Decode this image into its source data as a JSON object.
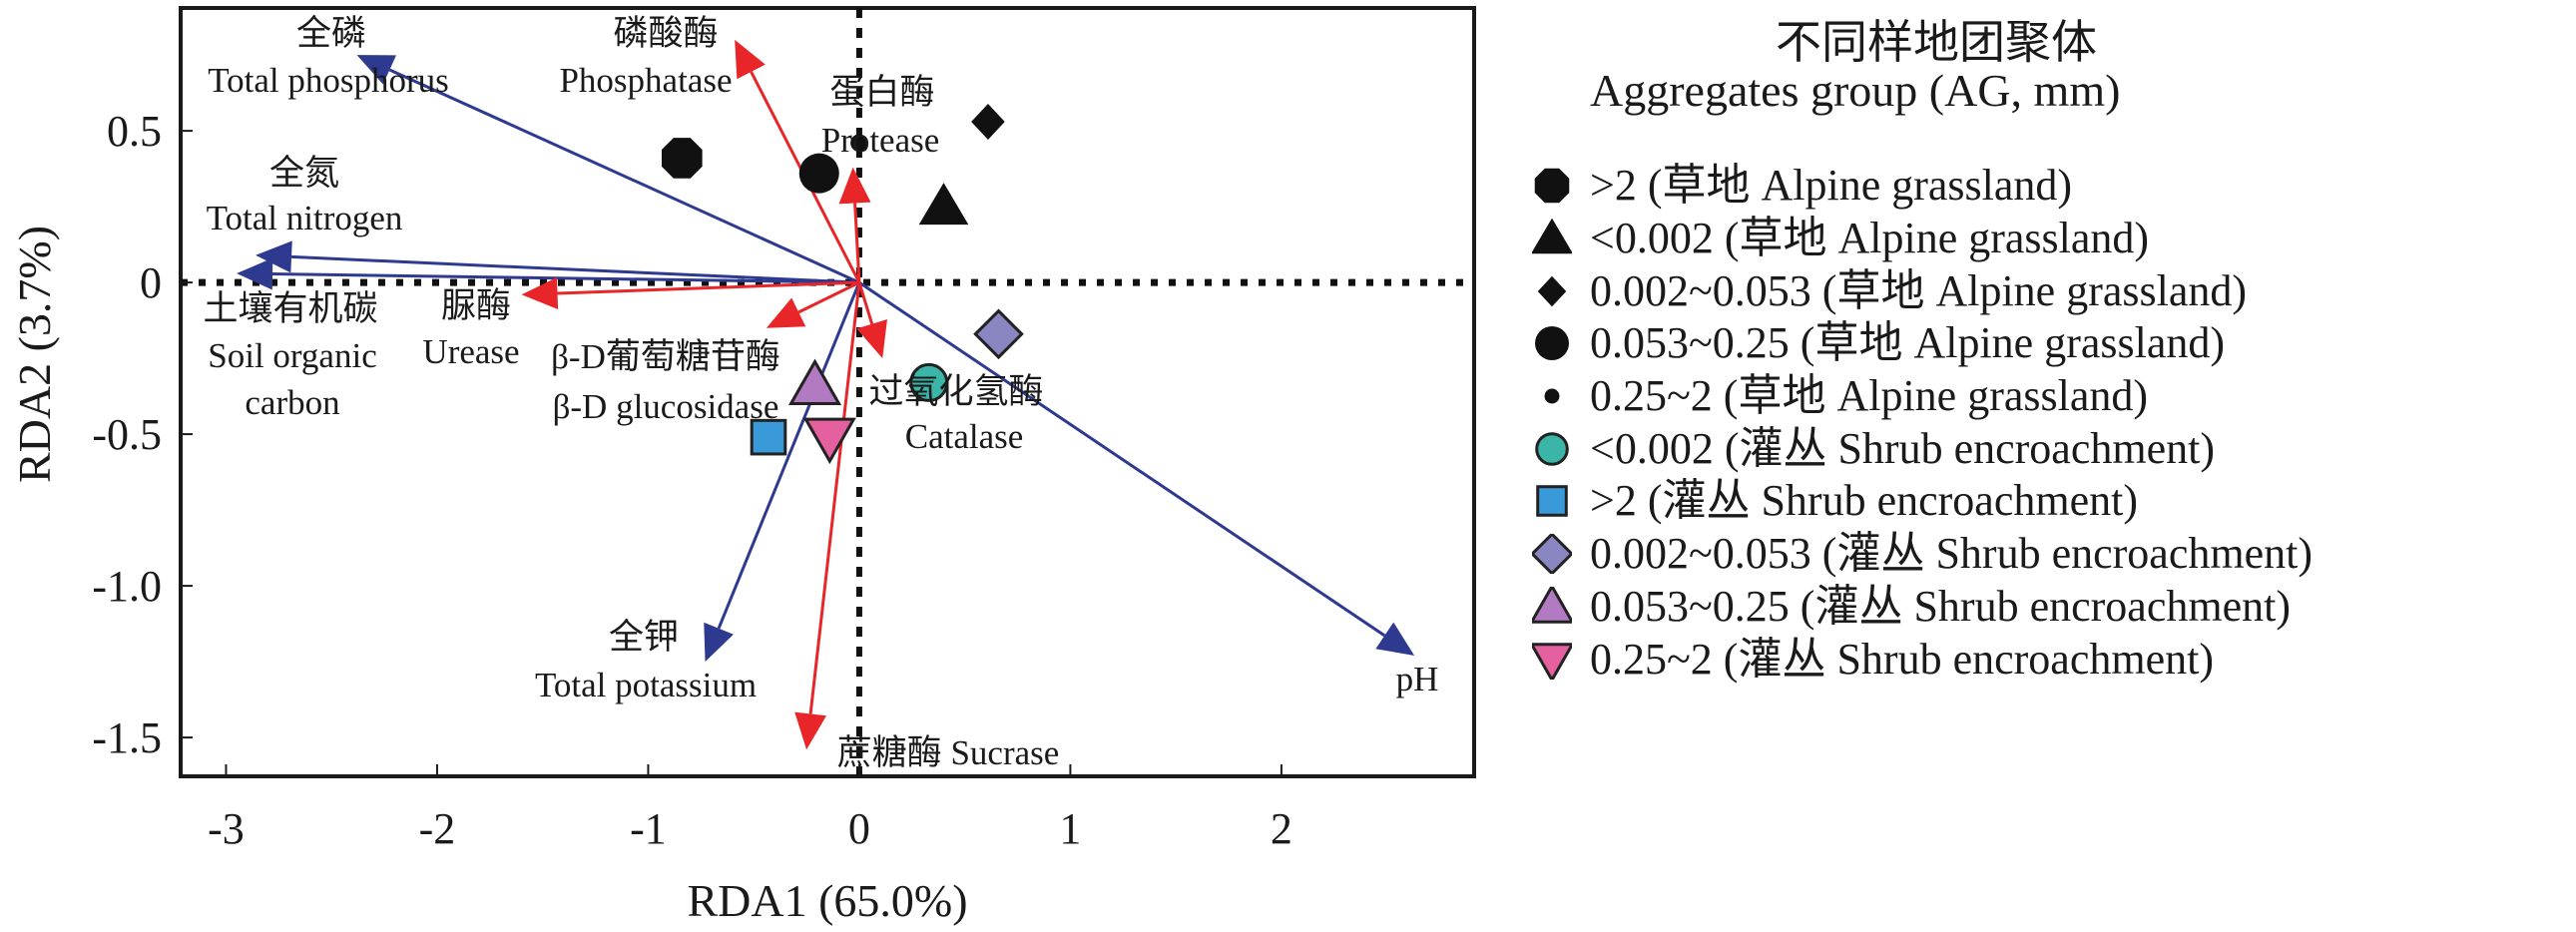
{
  "chart_data": {
    "type": "scatter",
    "subtype": "RDA biplot",
    "xlabel": "RDA1 (65.0%)",
    "ylabel": "RDA2 (3.7%)",
    "xlim": [
      -3.215,
      2.913
    ],
    "ylim": [
      -1.628,
      0.905
    ],
    "x_ticks": [
      -3,
      -2,
      -1,
      0,
      1,
      2
    ],
    "x_tick_labels": [
      "-3",
      "-2",
      "-1",
      "0",
      "1",
      "2"
    ],
    "y_ticks": [
      0.5,
      0,
      -0.5,
      -1.0,
      -1.5
    ],
    "y_tick_labels": [
      "0.5",
      "0",
      "-0.5",
      "-1.0",
      "-1.5"
    ],
    "grid": false,
    "reference_lines": {
      "x0": "dotted",
      "y0": "dotted"
    },
    "arrow_colors": {
      "soil_property": "#2e3a8f",
      "enzyme": "#e8262a"
    },
    "arrows": [
      {
        "group": "soil_property",
        "zh": "全磷",
        "en": "Total phosphorus",
        "x": -2.38,
        "y": 0.75
      },
      {
        "group": "soil_property",
        "zh": "全氮",
        "en": "Total nitrogen",
        "x": -2.86,
        "y": 0.09
      },
      {
        "group": "soil_property",
        "zh": "土壤有机碳",
        "en": "Soil organic carbon",
        "x": -2.95,
        "y": 0.03
      },
      {
        "group": "soil_property",
        "zh": "全钾",
        "en": "Total potassium",
        "x": -0.73,
        "y": -1.25
      },
      {
        "group": "soil_property",
        "zh": "",
        "en": "pH",
        "x": 2.63,
        "y": -1.23
      },
      {
        "group": "enzyme",
        "zh": "磷酸酶",
        "en": "Phosphatase",
        "x": -0.59,
        "y": 0.8
      },
      {
        "group": "enzyme",
        "zh": "蛋白酶",
        "en": "Protease",
        "x": -0.03,
        "y": 0.38
      },
      {
        "group": "enzyme",
        "zh": "脲酶",
        "en": "Urease",
        "x": -1.6,
        "y": -0.04
      },
      {
        "group": "enzyme",
        "zh": "β-D葡萄糖苷酶",
        "en": "β-D glucosidase",
        "x": -0.44,
        "y": -0.15
      },
      {
        "group": "enzyme",
        "zh": "过氧化氢酶",
        "en": "Catalase",
        "x": 0.11,
        "y": -0.25
      },
      {
        "group": "enzyme",
        "zh": "蔗糖酶",
        "en": "Sucrase",
        "x": -0.25,
        "y": -1.54
      }
    ],
    "annotations": {
      "tp_zh": "全磷",
      "tp_en": "Total phosphorus",
      "pa_zh": "磷酸酶",
      "pa_en": "Phosphatase",
      "pr_zh": "蛋白酶",
      "pr_en": "Protease",
      "tn_zh": "全氮",
      "tn_en": "Total nitrogen",
      "soc_zh": "土壤有机碳",
      "soc_en1": "Soil organic",
      "soc_en2": "carbon",
      "ur_zh": "脲酶",
      "ur_en": "Urease",
      "bg_zh": "β-D葡萄糖苷酶",
      "bg_en": "β-D glucosidase",
      "ca_zh": "过氧化氢酶",
      "ca_en": "Catalase",
      "tk_zh": "全钾",
      "tk_en": "Total potassium",
      "su": "蔗糖酶 Sucrase",
      "ph": "pH"
    },
    "legend_title_zh": "不同样地团聚体",
    "legend_title_en": "Aggregates group (AG, mm)",
    "legend_position": "right",
    "series": [
      {
        "name": ">2 (草地 Alpine grassland)",
        "marker": "octagon",
        "color": "#111111",
        "x": -0.84,
        "y": 0.41
      },
      {
        "name": "<0.002 (草地 Alpine grassland)",
        "marker": "triangle-up",
        "color": "#111111",
        "x": 0.4,
        "y": 0.25
      },
      {
        "name": "0.002~0.053 (草地 Alpine grassland)",
        "marker": "diamond-small",
        "color": "#111111",
        "x": 0.61,
        "y": 0.53
      },
      {
        "name": "0.053~0.25 (草地 Alpine grassland)",
        "marker": "circle",
        "color": "#111111",
        "x": -0.19,
        "y": 0.36
      },
      {
        "name": "0.25~2 (草地 Alpine grassland)",
        "marker": "dot",
        "color": "#111111",
        "x": 0.0,
        "y": 0.46
      },
      {
        "name": "<0.002 (灌丛 Shrub encroachment)",
        "marker": "circle-outlined",
        "color": "#3bb5a8",
        "x": 0.33,
        "y": -0.33
      },
      {
        "name": ">2 (灌丛 Shrub encroachment)",
        "marker": "square-outlined",
        "color": "#3a9ad9",
        "x": -0.43,
        "y": -0.51
      },
      {
        "name": "0.002~0.053 (灌丛 Shrub encroachment)",
        "marker": "diamond-outlined",
        "color": "#8a86c2",
        "x": 0.66,
        "y": -0.17
      },
      {
        "name": "0.053~0.25 (灌丛 Shrub encroachment)",
        "marker": "triangle-up-outlined",
        "color": "#b27ac0",
        "x": -0.21,
        "y": -0.34
      },
      {
        "name": "0.25~2 (灌丛 Shrub encroachment)",
        "marker": "triangle-down-outlined",
        "color": "#e5609f",
        "x": -0.14,
        "y": -0.51
      }
    ]
  }
}
